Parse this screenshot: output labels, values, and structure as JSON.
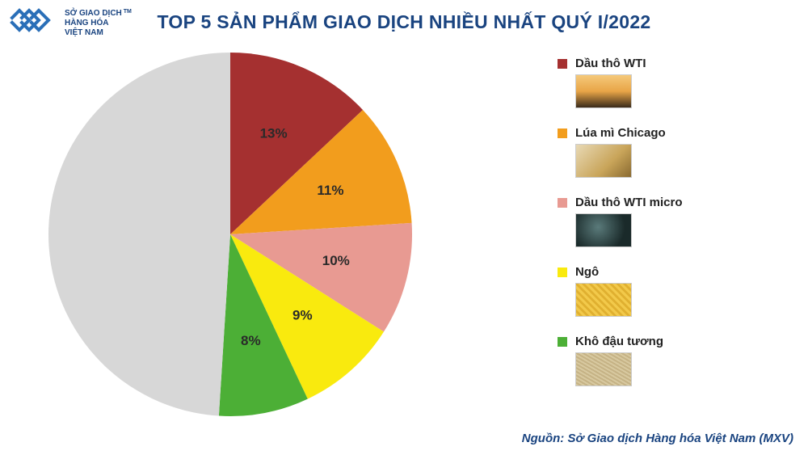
{
  "logo": {
    "line1": "SỞ GIAO DỊCH",
    "line2": "HÀNG HÓA",
    "line3": "VIỆT NAM",
    "tm": "TM",
    "mark_color": "#2a6fb8"
  },
  "title": "TOP 5 SẢN PHẨM GIAO DỊCH NHIỀU NHẤT QUÝ I/2022",
  "chart": {
    "type": "pie",
    "background_color": "#ffffff",
    "other_color": "#d7d7d7",
    "label_fontsize": 17,
    "label_color": "#2a2a2a",
    "slices": [
      {
        "name": "Dầu thô WTI",
        "value": 13,
        "label": "13%",
        "color": "#a53030",
        "thumb_bg": "linear-gradient(to bottom,#f5c97a 0%,#e8a547 50%,#3a2a1a 100%)"
      },
      {
        "name": "Lúa mì Chicago",
        "value": 11,
        "label": "11%",
        "color": "#f29d1d",
        "thumb_bg": "linear-gradient(135deg,#e8d9b5 0%,#c9a55a 60%,#8a6a30 100%)"
      },
      {
        "name": "Dầu thô WTI micro",
        "value": 10,
        "label": "10%",
        "color": "#e89a92",
        "thumb_bg": "radial-gradient(circle at 40% 40%,#5a7a7a 0%,#1a2a2a 70%)"
      },
      {
        "name": "Ngô",
        "value": 9,
        "label": "9%",
        "color": "#f9ea0e",
        "thumb_bg": "repeating-linear-gradient(45deg,#f2c94a 0 3px,#e0b030 3px 6px)"
      },
      {
        "name": "Khô đậu tương",
        "value": 8,
        "label": "8%",
        "color": "#4caf36",
        "thumb_bg": "repeating-linear-gradient(30deg,#d8c9a0 0 2px,#c5b285 2px 4px)"
      }
    ],
    "other_value": 49
  },
  "source": "Nguồn: Sở Giao dịch Hàng hóa Việt Nam (MXV)"
}
